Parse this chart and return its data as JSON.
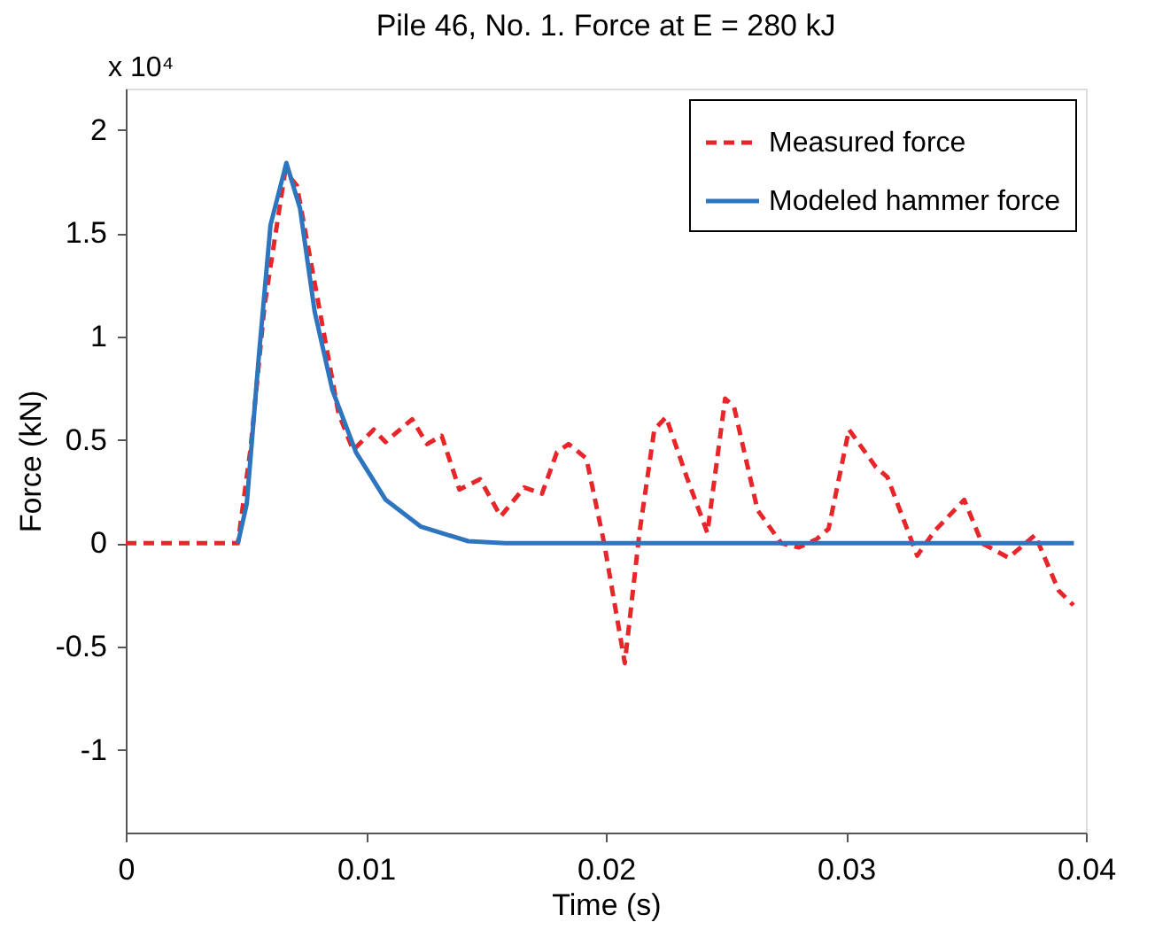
{
  "chart_data": {
    "type": "line",
    "title": "Pile 46, No. 1. Force at E = 280 kJ",
    "xlabel": "Time (s)",
    "ylabel": "Force (kN)",
    "annotations": [
      "x 10⁴"
    ],
    "xlim": [
      0,
      0.04
    ],
    "xticks": [
      0,
      0.01,
      0.02,
      0.03,
      0.04
    ],
    "ylim": [
      -1.4,
      2.2
    ],
    "yticks": [
      -1,
      -0.5,
      0,
      0.5,
      1,
      1.5,
      2
    ],
    "grid": false,
    "legend": "top right",
    "marker": "none",
    "series": [
      {
        "name": "Measured force",
        "color": "#e8262a",
        "line_style": "dashed",
        "x": [
          0,
          0.00467,
          0.0052,
          0.00578,
          0.00664,
          0.00713,
          0.00787,
          0.00886,
          0.00947,
          0.01033,
          0.01082,
          0.01193,
          0.01255,
          0.01316,
          0.0139,
          0.01476,
          0.01562,
          0.0166,
          0.01734,
          0.01796,
          0.01845,
          0.01919,
          0.01993,
          0.02079,
          0.0214,
          0.02202,
          0.02251,
          0.02337,
          0.02423,
          0.02497,
          0.02534,
          0.02632,
          0.02731,
          0.02804,
          0.02878,
          0.02928,
          0.03013,
          0.03124,
          0.03173,
          0.03297,
          0.0337,
          0.03493,
          0.03567,
          0.03678,
          0.03788,
          0.03887,
          0.03948
        ],
        "values": [
          0,
          0,
          0.46,
          1.15,
          1.8,
          1.73,
          1.26,
          0.63,
          0.45,
          0.55,
          0.49,
          0.6,
          0.48,
          0.52,
          0.26,
          0.31,
          0.13,
          0.27,
          0.24,
          0.44,
          0.48,
          0.41,
          0,
          -0.58,
          0.05,
          0.55,
          0.61,
          0.32,
          0.05,
          0.7,
          0.66,
          0.16,
          0,
          -0.02,
          0.02,
          0.07,
          0.55,
          0.37,
          0.32,
          -0.06,
          0.06,
          0.21,
          0,
          -0.07,
          0.04,
          -0.23,
          -0.3
        ]
      },
      {
        "name": "Modeled hammer force",
        "color": "#2e75c0",
        "line_style": "solid",
        "x": [
          0.00467,
          0.00504,
          0.00554,
          0.00603,
          0.00669,
          0.00726,
          0.00787,
          0.00861,
          0.00959,
          0.01083,
          0.0123,
          0.01427,
          0.0158,
          0.0395
        ],
        "values": [
          0,
          0.19,
          0.9,
          1.54,
          1.84,
          1.62,
          1.12,
          0.74,
          0.44,
          0.21,
          0.08,
          0.01,
          0,
          0
        ]
      }
    ]
  }
}
